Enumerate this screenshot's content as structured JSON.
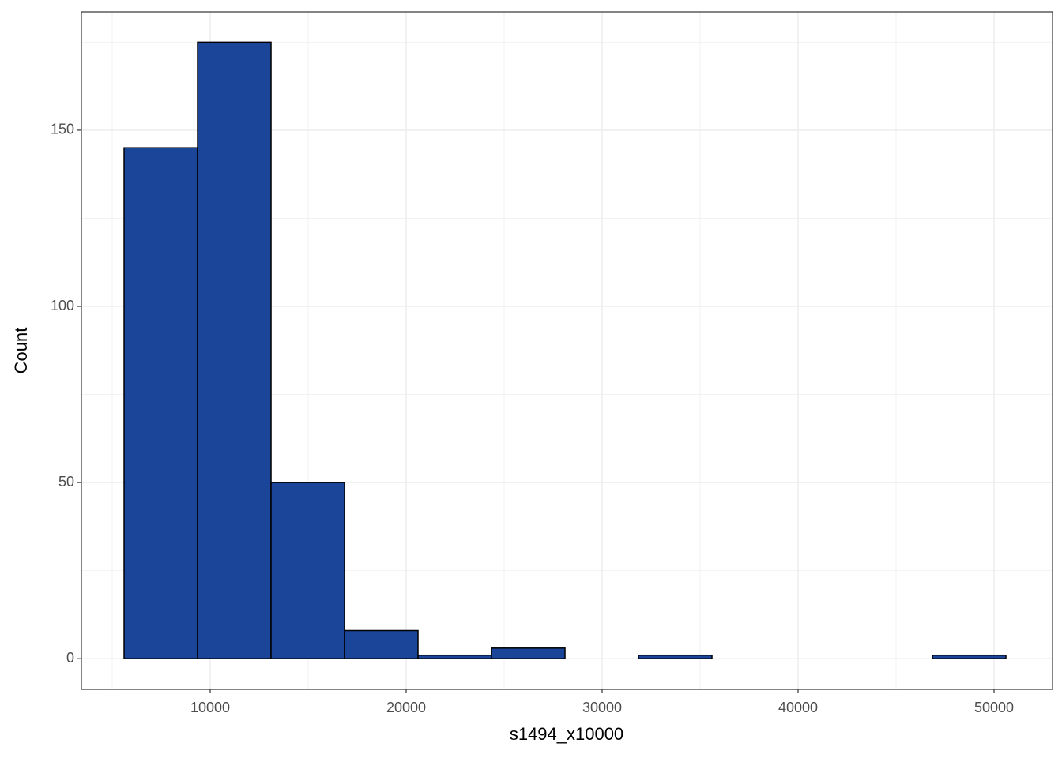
{
  "chart_data": {
    "type": "histogram",
    "x_label": "s1494_x10000",
    "y_label": "Count",
    "bins": [
      5605,
      9355,
      13105,
      16855,
      20605,
      24355,
      28105,
      31855,
      35605,
      39355,
      43105,
      46855,
      50605
    ],
    "values": [
      145,
      175,
      50,
      8,
      1,
      3,
      0,
      1,
      0,
      0,
      0,
      1
    ],
    "color": "#1a4599",
    "edge_color": "#000000",
    "xlim": [
      3427,
      52984
    ],
    "ylim": [
      -8.7,
      183.6
    ],
    "xticks": [
      10000,
      20000,
      30000,
      40000,
      50000
    ],
    "yticks": [
      0,
      50,
      100,
      150
    ],
    "grid": true
  }
}
